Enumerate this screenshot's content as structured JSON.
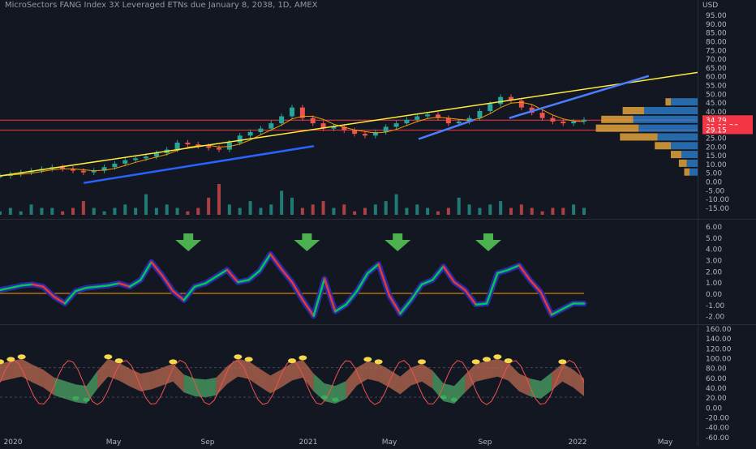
{
  "title": "MicroSectors FANG Index 3X Leveraged ETNs due January 8, 2038, 1D, AMEX",
  "chart_data": [
    {
      "type": "line",
      "panel": "price",
      "currency_label": "USD",
      "y_ticks": [
        95,
        90,
        85,
        80,
        75,
        70,
        65,
        60,
        55,
        50,
        45,
        40,
        35,
        30,
        25,
        20,
        15,
        10,
        5,
        0,
        -5,
        -10,
        -15
      ],
      "price_labels": [
        {
          "text": "34.79",
          "color": "#f23645"
        },
        {
          "text": "01:09:20",
          "color": "#f23645"
        },
        {
          "text": "29.15",
          "color": "#f23645"
        }
      ],
      "series": [
        {
          "values": [
            3,
            4,
            5,
            6,
            7,
            8,
            7,
            6,
            5,
            6,
            8,
            10,
            12,
            13,
            14,
            16,
            18,
            22,
            21,
            20,
            19,
            18,
            22,
            26,
            28,
            30,
            33,
            37,
            42,
            36,
            33,
            30,
            31,
            29,
            27,
            26,
            28,
            31,
            33,
            35,
            37,
            38,
            36,
            33,
            34,
            36,
            40,
            44,
            48,
            46,
            42,
            39,
            36,
            34,
            33,
            34,
            35
          ]
        }
      ],
      "volume": [
        1,
        2,
        1,
        3,
        2,
        2,
        1,
        2,
        4,
        2,
        1,
        2,
        3,
        2,
        6,
        2,
        3,
        2,
        1,
        2,
        5,
        9,
        3,
        2,
        4,
        2,
        3,
        7,
        5,
        2,
        3,
        4,
        2,
        3,
        1,
        2,
        3,
        4,
        6,
        2,
        3,
        2,
        1,
        2,
        5,
        3,
        2,
        3,
        4,
        2,
        3,
        2,
        1,
        2,
        2,
        3,
        2
      ],
      "trendlines": [
        {
          "name": "resistance",
          "color": "#ffeb3b",
          "start": [
            0,
            3
          ],
          "end": [
            1,
            62
          ]
        },
        {
          "name": "support",
          "color": "#2962ff",
          "start": [
            0.12,
            -1
          ],
          "end": [
            0.45,
            20
          ]
        },
        {
          "name": "channel",
          "color": "#4c7dff",
          "start": [
            0.6,
            24
          ],
          "end": [
            0.68,
            35
          ]
        },
        {
          "name": "projection",
          "color": "#4c7dff",
          "start": [
            0.73,
            36
          ],
          "end": [
            0.93,
            60
          ]
        }
      ],
      "horizontal_lines": [
        {
          "value": 29.15,
          "color": "#f23645"
        },
        {
          "value": 34.79,
          "color": "#f23645"
        }
      ],
      "volume_profile": [
        {
          "price": 45,
          "up": 10,
          "down": 2
        },
        {
          "price": 40,
          "up": 20,
          "down": 8
        },
        {
          "price": 35,
          "up": 24,
          "down": 12
        },
        {
          "price": 30,
          "up": 22,
          "down": 16
        },
        {
          "price": 25,
          "up": 15,
          "down": 14
        },
        {
          "price": 20,
          "up": 10,
          "down": 6
        },
        {
          "price": 15,
          "up": 6,
          "down": 4
        },
        {
          "price": 10,
          "up": 4,
          "down": 3
        },
        {
          "price": 5,
          "up": 3,
          "down": 2
        }
      ]
    },
    {
      "type": "line",
      "panel": "oscillator",
      "y_ticks": [
        6,
        5,
        4,
        3,
        2,
        1,
        0,
        -1,
        -2
      ],
      "zero_line_color": "#ff9800",
      "series": [
        {
          "values": [
            0.3,
            0.5,
            0.7,
            0.8,
            0.6,
            -0.3,
            -0.9,
            0.2,
            0.5,
            0.6,
            0.7,
            0.9,
            0.6,
            1.2,
            2.8,
            1.6,
            0.2,
            -0.6,
            0.6,
            0.9,
            1.5,
            2.1,
            1.0,
            1.2,
            2.0,
            3.5,
            2.2,
            1.0,
            -0.6,
            -2.0,
            1.3,
            -1.6,
            -1.0,
            0.2,
            1.8,
            2.6,
            -0.2,
            -1.8,
            -0.6,
            0.8,
            1.2,
            2.4,
            1.0,
            0.3,
            -1.0,
            -0.9,
            1.8,
            2.1,
            2.5,
            1.2,
            0.1,
            -1.9,
            -1.4,
            -0.9,
            -0.9
          ]
        }
      ],
      "arrows": [
        0.27,
        0.44,
        0.57,
        0.7
      ]
    },
    {
      "type": "area",
      "panel": "momentum",
      "y_ticks": [
        160,
        140,
        120,
        100,
        80,
        60,
        40,
        20,
        0,
        -20,
        -40,
        -60
      ],
      "series": [
        {
          "values": [
            70,
            75,
            80,
            68,
            58,
            42,
            35,
            28,
            25,
            55,
            80,
            72,
            60,
            50,
            54,
            62,
            70,
            48,
            40,
            38,
            42,
            65,
            80,
            75,
            60,
            46,
            58,
            72,
            78,
            50,
            30,
            25,
            35,
            62,
            75,
            70,
            58,
            44,
            62,
            70,
            56,
            30,
            25,
            48,
            70,
            75,
            80,
            72,
            50,
            40,
            35,
            52,
            70,
            58,
            40
          ]
        }
      ]
    }
  ],
  "x_axis_labels": [
    "2020",
    "May",
    "Sep",
    "2021",
    "May",
    "Sep",
    "2022",
    "May"
  ],
  "colors": {
    "background": "#131722",
    "up": "#26a69a",
    "down": "#ef5350",
    "ma": "#f59b00",
    "osc_band": "#2a2aa8",
    "osc_up": "#00c853",
    "osc_down": "#e53935",
    "arrow": "#4caf50",
    "momentum_fill": "#c7613e",
    "momentum_low": "#3cab5a",
    "momentum_high": "#f3d84c"
  }
}
